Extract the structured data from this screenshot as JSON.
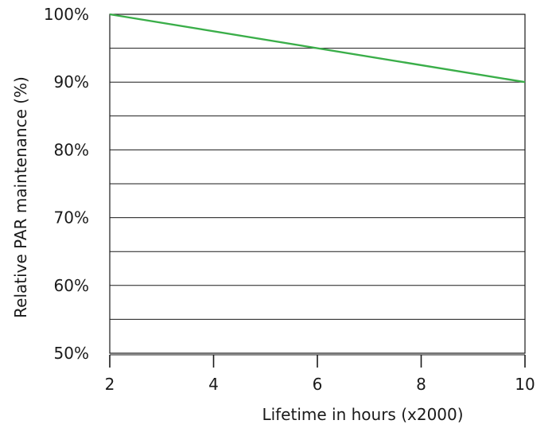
{
  "chart_data": {
    "type": "line",
    "xlabel": "Lifetime in hours (x2000)",
    "ylabel": "Relative PAR maintenance (%)",
    "xlim": [
      2,
      10
    ],
    "ylim": [
      50,
      100
    ],
    "x_ticks": [
      2,
      4,
      6,
      8,
      10
    ],
    "x_tick_labels": [
      "2",
      "4",
      "6",
      "8",
      "10"
    ],
    "y_ticks": [
      50,
      60,
      70,
      80,
      90,
      100
    ],
    "y_tick_labels": [
      "50%",
      "60%",
      "70%",
      "80%",
      "90%",
      "100%"
    ],
    "grid": "horizontal",
    "grid_lines": [
      55,
      60,
      65,
      70,
      75,
      80,
      85,
      90,
      95
    ],
    "series": [
      {
        "x": [
          2,
          10
        ],
        "y": [
          100,
          90
        ],
        "color": "#3aae49"
      }
    ]
  }
}
